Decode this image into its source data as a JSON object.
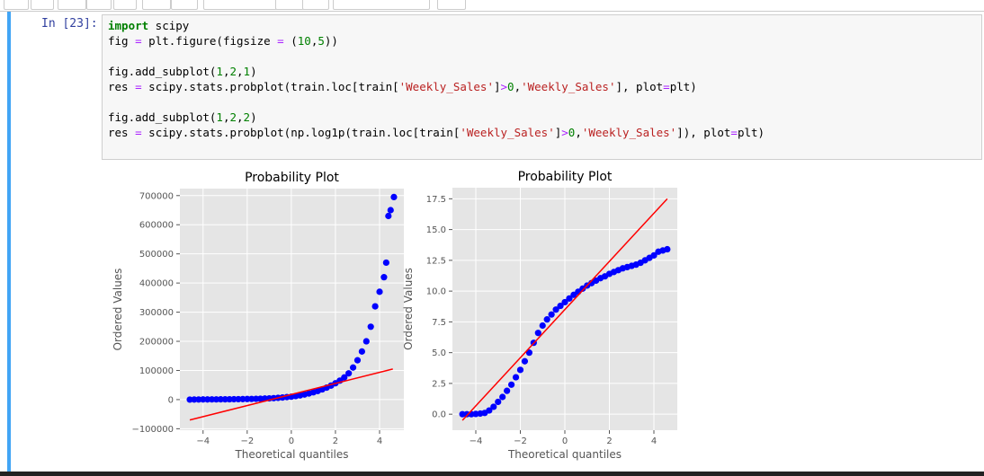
{
  "cell": {
    "prompt": "In [23]:",
    "code": [
      [
        [
          [
            "import",
            "kw"
          ],
          [
            " scipy",
            "n"
          ]
        ],
        [
          [
            "fig ",
            "n"
          ],
          [
            "=",
            "op"
          ],
          [
            " plt.figure(figsize ",
            "n"
          ],
          [
            "=",
            "op"
          ],
          [
            " (",
            "n"
          ],
          [
            "10",
            "num"
          ],
          [
            ",",
            "n"
          ],
          [
            "5",
            "num"
          ],
          [
            "))",
            "n"
          ]
        ]
      ],
      [
        [
          [
            "fig.add_subplot(",
            "n"
          ],
          [
            "1",
            "num"
          ],
          [
            ",",
            "n"
          ],
          [
            "2",
            "num"
          ],
          [
            ",",
            "n"
          ],
          [
            "1",
            "num"
          ],
          [
            ")",
            "n"
          ]
        ],
        [
          [
            "res ",
            "n"
          ],
          [
            "=",
            "op"
          ],
          [
            " scipy.stats.probplot(train.loc[train[",
            "n"
          ],
          [
            "'Weekly_Sales'",
            "str"
          ],
          [
            "]",
            "n"
          ],
          [
            ">",
            "op"
          ],
          [
            "0",
            "num"
          ],
          [
            ",",
            "n"
          ],
          [
            "'Weekly_Sales'",
            "str"
          ],
          [
            "], plot",
            "n"
          ],
          [
            "=",
            "op"
          ],
          [
            "plt)",
            "n"
          ]
        ]
      ],
      [
        [
          [
            "fig.add_subplot(",
            "n"
          ],
          [
            "1",
            "num"
          ],
          [
            ",",
            "n"
          ],
          [
            "2",
            "num"
          ],
          [
            ",",
            "n"
          ],
          [
            "2",
            "num"
          ],
          [
            ")",
            "n"
          ]
        ],
        [
          [
            "res ",
            "n"
          ],
          [
            "=",
            "op"
          ],
          [
            " scipy.stats.probplot(np.log1p(train.loc[train[",
            "n"
          ],
          [
            "'Weekly_Sales'",
            "str"
          ],
          [
            "]",
            "n"
          ],
          [
            ">",
            "op"
          ],
          [
            "0",
            "num"
          ],
          [
            ",",
            "n"
          ],
          [
            "'Weekly_Sales'",
            "str"
          ],
          [
            "]), plot",
            "n"
          ],
          [
            "=",
            "op"
          ],
          [
            "plt)",
            "n"
          ]
        ]
      ]
    ]
  },
  "chart_data": [
    {
      "type": "scatter",
      "title": "Probability Plot",
      "x_label": "Theoretical quantiles",
      "y_label": "Ordered Values",
      "color": "#0000ff",
      "grid": true,
      "x": [
        -4.6,
        -4.4,
        -4.2,
        -4.0,
        -3.8,
        -3.6,
        -3.4,
        -3.2,
        -3.0,
        -2.8,
        -2.6,
        -2.4,
        -2.2,
        -2.0,
        -1.8,
        -1.6,
        -1.4,
        -1.2,
        -1.0,
        -0.8,
        -0.6,
        -0.4,
        -0.2,
        0,
        0.2,
        0.4,
        0.6,
        0.8,
        1.0,
        1.2,
        1.4,
        1.6,
        1.8,
        2.0,
        2.2,
        2.4,
        2.6,
        2.8,
        3.0,
        3.2,
        3.4,
        3.6,
        3.8,
        4.0,
        4.2,
        4.3,
        4.4,
        4.5,
        4.65
      ],
      "values": [
        0,
        200,
        400,
        500,
        600,
        700,
        800,
        900,
        1000,
        1100,
        1300,
        1500,
        1700,
        2000,
        2300,
        2700,
        3100,
        3600,
        4200,
        5000,
        6000,
        7200,
        8600,
        10000,
        12000,
        14500,
        17500,
        21000,
        25000,
        29500,
        35000,
        41000,
        48000,
        56000,
        65000,
        76000,
        90000,
        110000,
        135000,
        165000,
        200000,
        250000,
        320000,
        370000,
        420000,
        470000,
        630000,
        650000,
        695000
      ],
      "fit": {
        "x": [
          -4.6,
          4.6
        ],
        "values": [
          -70000,
          105000
        ],
        "color": "#ff0000"
      },
      "xlim": [
        -5.05,
        5.1
      ],
      "ylim": [
        -105000,
        724000
      ],
      "xticks": [
        {
          "value": -4,
          "label": "−4"
        },
        {
          "value": -2,
          "label": "−2"
        },
        0,
        2,
        4
      ],
      "yticks": [
        {
          "value": -100000,
          "label": "−100000"
        },
        0,
        100000,
        200000,
        300000,
        400000,
        500000,
        600000,
        700000
      ]
    },
    {
      "type": "scatter",
      "title": "Probability Plot",
      "x_label": "Theoretical quantiles",
      "y_label": "Ordered Values",
      "color": "#0000ff",
      "grid": true,
      "x": [
        -4.6,
        -4.4,
        -4.2,
        -4.0,
        -3.8,
        -3.6,
        -3.4,
        -3.2,
        -3.0,
        -2.8,
        -2.6,
        -2.4,
        -2.2,
        -2.0,
        -1.8,
        -1.6,
        -1.4,
        -1.2,
        -1.0,
        -0.8,
        -0.6,
        -0.4,
        -0.2,
        0,
        0.2,
        0.4,
        0.6,
        0.8,
        1.0,
        1.2,
        1.4,
        1.6,
        1.8,
        2.0,
        2.2,
        2.4,
        2.6,
        2.8,
        3.0,
        3.2,
        3.4,
        3.6,
        3.8,
        4.0,
        4.2,
        4.4,
        4.6
      ],
      "values": [
        0,
        0,
        0,
        0.02,
        0.05,
        0.1,
        0.3,
        0.6,
        1.0,
        1.4,
        1.9,
        2.4,
        3.0,
        3.6,
        4.3,
        5.0,
        5.8,
        6.6,
        7.2,
        7.7,
        8.1,
        8.5,
        8.8,
        9.1,
        9.4,
        9.7,
        9.95,
        10.2,
        10.45,
        10.65,
        10.85,
        11.05,
        11.2,
        11.4,
        11.55,
        11.7,
        11.85,
        11.95,
        12.05,
        12.15,
        12.3,
        12.5,
        12.7,
        12.9,
        13.2,
        13.3,
        13.4
      ],
      "fit": {
        "x": [
          -4.6,
          4.6
        ],
        "values": [
          -0.5,
          17.5
        ],
        "color": "#ff0000"
      },
      "xlim": [
        -5.05,
        5.05
      ],
      "ylim": [
        -1.3,
        18.4
      ],
      "xticks": [
        {
          "value": -4,
          "label": "−4"
        },
        {
          "value": -2,
          "label": "−2"
        },
        0,
        2,
        4
      ],
      "yticks": [
        {
          "value": 0,
          "label": "0.0"
        },
        {
          "value": 2.5,
          "label": "2.5"
        },
        {
          "value": 5,
          "label": "5.0"
        },
        {
          "value": 7.5,
          "label": "7.5"
        },
        {
          "value": 10,
          "label": "10.0"
        },
        {
          "value": 12.5,
          "label": "12.5"
        },
        {
          "value": 15,
          "label": "15.0"
        },
        {
          "value": 17.5,
          "label": "17.5"
        }
      ]
    }
  ]
}
